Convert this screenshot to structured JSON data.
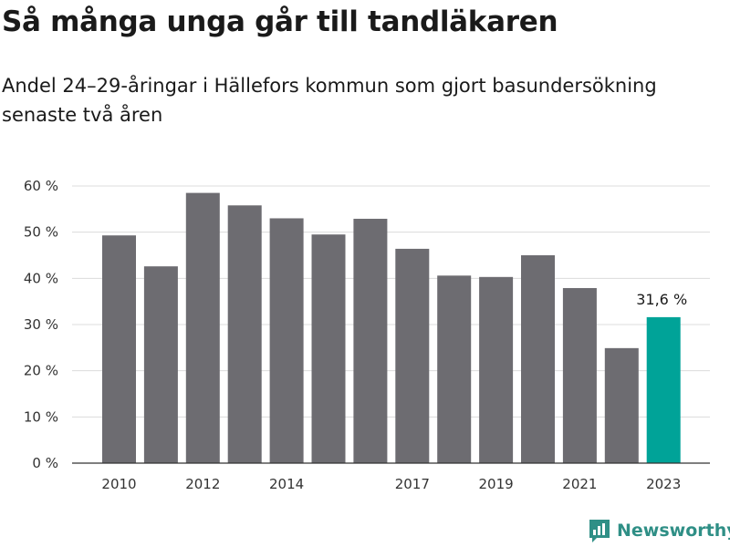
{
  "header": {
    "title": "Så många unga går till tandläkaren",
    "subtitle": "Andel 24–29-åringar i Hällefors kommun som gjort basundersökning senaste två åren"
  },
  "chart_data": {
    "type": "bar",
    "categories": [
      "2010",
      "2011",
      "2012",
      "2013",
      "2014",
      "2015",
      "2016",
      "2017",
      "2018",
      "2019",
      "2020",
      "2021",
      "2022",
      "2023"
    ],
    "values": [
      49.3,
      42.6,
      58.5,
      55.8,
      53.0,
      49.5,
      52.9,
      46.4,
      40.6,
      40.3,
      45.0,
      37.9,
      24.9,
      31.6
    ],
    "x_tick_labels": [
      "2010",
      "2012",
      "2014",
      "2017",
      "2019",
      "2021",
      "2023"
    ],
    "y_ticks": [
      0,
      10,
      20,
      30,
      40,
      50,
      60
    ],
    "y_tick_labels": [
      "0 %",
      "10 %",
      "20 %",
      "30 %",
      "40 %",
      "50 %",
      "60 %"
    ],
    "ylim": [
      0,
      60
    ],
    "grid": true,
    "bar_color": "#6d6c71",
    "highlight_color": "#00a398",
    "highlight_index": 13,
    "data_labels": [
      {
        "index": 13,
        "text": "31,6 %"
      }
    ]
  },
  "branding": {
    "name": "Newsworthy",
    "icon": "bar-chart-icon",
    "color": "#2f8f86"
  }
}
